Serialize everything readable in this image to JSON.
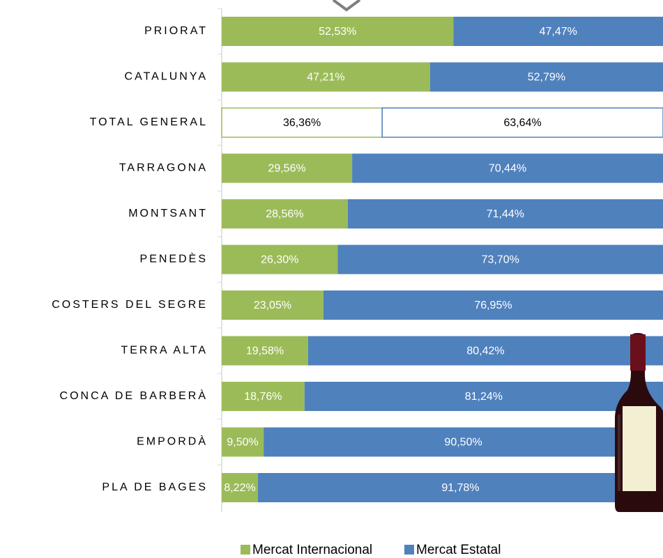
{
  "chart_data": {
    "type": "stacked-bar-horizontal",
    "categories": [
      "PRIORAT",
      "CATALUNYA",
      "TOTAL GENERAL",
      "TARRAGONA",
      "MONTSANT",
      "PENEDÈS",
      "COSTERS DEL SEGRE",
      "TERRA ALTA",
      "CONCA DE BARBERÀ",
      "EMPORDÀ",
      "PLA DE BAGES"
    ],
    "xlim": [
      0,
      100
    ],
    "series": [
      {
        "name": "Mercat Internacional",
        "color": "#9bbb59",
        "point_colors": [
          "#9bbb59",
          "#9bbb59",
          "#ffffff",
          "#9bbb59",
          "#9bbb59",
          "#9bbb59",
          "#9bbb59",
          "#9bbb59",
          "#9bbb59",
          "#9bbb59",
          "#9bbb59"
        ],
        "values": [
          52.53,
          47.21,
          36.36,
          29.56,
          28.56,
          26.3,
          23.05,
          19.58,
          18.76,
          9.5,
          8.22
        ],
        "value_labels": [
          "52,53%",
          "47,21%",
          "36,36%",
          "29,56%",
          "28,56%",
          "26,30%",
          "23,05%",
          "19,58%",
          "18,76%",
          "9,50%",
          "8,22%"
        ]
      },
      {
        "name": "Mercat Estatal",
        "color": "#4f81bd",
        "point_colors": [
          "#4f81bd",
          "#4f81bd",
          "#ffffff",
          "#4f81bd",
          "#4f81bd",
          "#4f81bd",
          "#4f81bd",
          "#4f81bd",
          "#4f81bd",
          "#4f81bd",
          "#4f81bd"
        ],
        "values": [
          47.47,
          52.79,
          63.64,
          70.44,
          71.44,
          73.7,
          76.95,
          80.42,
          81.24,
          90.5,
          91.78
        ],
        "value_labels": [
          "47,47%",
          "52,79%",
          "63,64%",
          "70,44%",
          "71,44%",
          "73,70%",
          "76,95%",
          "80,42%",
          "81,24%",
          "90,50%",
          "91,78%"
        ]
      }
    ]
  }
}
